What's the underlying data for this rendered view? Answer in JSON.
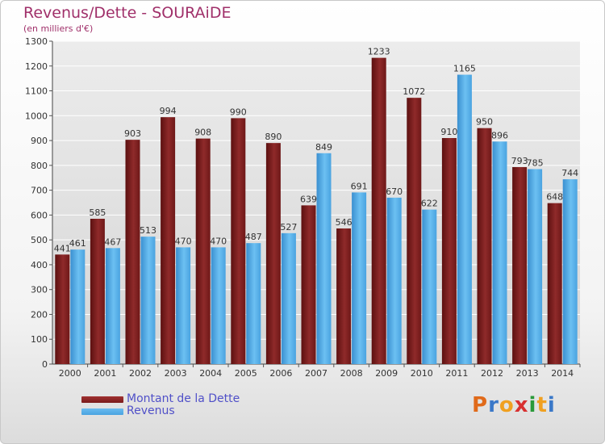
{
  "title": "Revenus/Dette - SOURAiDE",
  "subtitle": "(en milliers d'€)",
  "legend": {
    "debt_label": "Montant de la Dette",
    "revenue_label": "Revenus"
  },
  "logo": {
    "letters": [
      "P",
      "r",
      "o",
      "x",
      "i",
      "t",
      "i"
    ],
    "colors": [
      "#e06a1a",
      "#3a78c8",
      "#f0a020",
      "#d83030",
      "#2a9a3a",
      "#f0a020",
      "#3a78c8"
    ]
  },
  "colors": {
    "debt": "#7a1b1b",
    "revenue": "#4aa3e0",
    "title": "#a0306a",
    "legend_text": "#5050c8"
  },
  "chart_data": {
    "type": "bar",
    "categories": [
      "2000",
      "2001",
      "2002",
      "2003",
      "2004",
      "2005",
      "2006",
      "2007",
      "2008",
      "2009",
      "2010",
      "2011",
      "2012",
      "2013",
      "2014"
    ],
    "series": [
      {
        "name": "Montant de la Dette",
        "values": [
          441,
          585,
          903,
          994,
          908,
          990,
          890,
          639,
          546,
          1233,
          1072,
          910,
          950,
          793,
          648
        ]
      },
      {
        "name": "Revenus",
        "values": [
          461,
          467,
          513,
          470,
          470,
          487,
          527,
          849,
          691,
          670,
          622,
          1165,
          896,
          785,
          744
        ]
      }
    ],
    "yticks": [
      0,
      100,
      200,
      300,
      400,
      500,
      600,
      700,
      800,
      900,
      1000,
      1100,
      1200,
      1300
    ],
    "ylim": [
      0,
      1300
    ],
    "grid": true
  }
}
